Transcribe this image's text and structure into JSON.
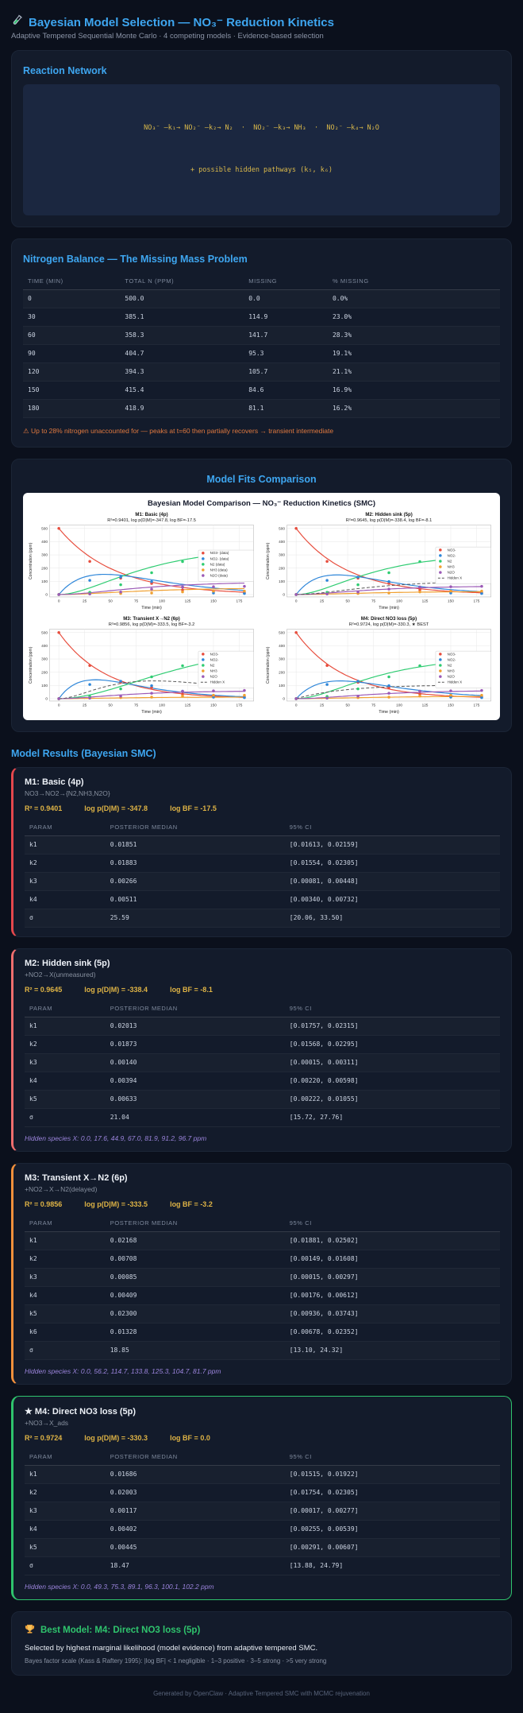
{
  "header": {
    "icon": "test-tube-icon",
    "title": "Bayesian Model Selection — NO₃⁻ Reduction Kinetics",
    "subtitle": "Adaptive Tempered Sequential Monte Carlo · 4 competing models · Evidence-based selection"
  },
  "reaction_network": {
    "heading": "Reaction Network",
    "line1": "NO₃⁻ —k₁→ NO₂⁻ —k₂→ N₂  ·  NO₂⁻ —k₃→ NH₃  ·  NO₂⁻ —k₄→ N₂O",
    "line2": "+ possible hidden pathways (k₅, k₆)"
  },
  "nitrogen_balance": {
    "heading": "Nitrogen Balance — The Missing Mass Problem",
    "columns": [
      "TIME (MIN)",
      "TOTAL N (PPM)",
      "MISSING",
      "% MISSING"
    ],
    "rows": [
      [
        "0",
        "500.0",
        "0.0",
        "0.0%"
      ],
      [
        "30",
        "385.1",
        "114.9",
        "23.0%"
      ],
      [
        "60",
        "358.3",
        "141.7",
        "28.3%"
      ],
      [
        "90",
        "404.7",
        "95.3",
        "19.1%"
      ],
      [
        "120",
        "394.3",
        "105.7",
        "21.1%"
      ],
      [
        "150",
        "415.4",
        "84.6",
        "16.9%"
      ],
      [
        "180",
        "418.9",
        "81.1",
        "16.2%"
      ]
    ],
    "warning": "⚠ Up to 28% nitrogen unaccounted for — peaks at t=60 then partially recovers → transient intermediate"
  },
  "model_fits": {
    "heading": "Model Fits Comparison"
  },
  "chart_data": {
    "type": "line",
    "title": "Bayesian Model Comparison — NO₃⁻ Reduction Kinetics (SMC)",
    "xlabel": "Time (min)",
    "ylabel": "Concentration (ppm)",
    "x_ticks": [
      0,
      25,
      50,
      75,
      100,
      125,
      150,
      175
    ],
    "y_ticks": [
      0,
      100,
      200,
      300,
      400,
      500
    ],
    "xlim": [
      -9,
      189
    ],
    "ylim": [
      -18,
      525
    ],
    "grid": true,
    "legend_position": "center right",
    "time": [
      0,
      30,
      60,
      90,
      120,
      150,
      180
    ],
    "observed": {
      "NO3-": [
        500,
        251,
        124,
        84,
        35,
        25,
        13
      ],
      "NO2-": [
        0,
        107,
        132,
        98,
        57,
        12,
        8
      ],
      "N2": [
        0,
        17,
        74,
        165,
        249,
        292,
        311
      ],
      "NH3": [
        0,
        5,
        8,
        12,
        20,
        26,
        26
      ],
      "N2O": [
        0,
        4,
        19,
        41,
        56,
        59,
        62
      ]
    },
    "colors": {
      "NO3-": "#e74c3c",
      "NO2-": "#2e86d9",
      "N2": "#2ecc71",
      "NH3": "#f0a030",
      "N2O": "#9b59b6",
      "Hidden X": "#555555"
    },
    "initial_no3_ppm": 500,
    "subplots": [
      {
        "id": "M1",
        "title": "M1: Basic (4p)",
        "subtitle": "R²=0.9401, log p(D|M)=-347.8, log BF=-17.5",
        "kinetics": "basic",
        "ks": {
          "k1": 0.01851,
          "k2": 0.01883,
          "k3": 0.00266,
          "k4": 0.00511
        },
        "legend": [
          "NO3- (data)",
          "NO2- (data)",
          "N2 (data)",
          "NH3 (data)",
          "N2O (data)"
        ],
        "hidden_curve": false
      },
      {
        "id": "M2",
        "title": "M2: Hidden sink (5p)",
        "subtitle": "R²=0.9645, log p(D|M)=-338.4, log BF=-8.1",
        "kinetics": "hidden_sink",
        "ks": {
          "k1": 0.02013,
          "k2": 0.01873,
          "k3": 0.0014,
          "k4": 0.00394,
          "k5": 0.00633
        },
        "legend": [
          "NO3-",
          "NO2-",
          "N2",
          "NH3",
          "N2O",
          "Hidden X"
        ],
        "hidden_curve": true
      },
      {
        "id": "M3",
        "title": "M3: Transient X→N2 (6p)",
        "subtitle": "R²=0.9856, log p(D|M)=-333.5, log BF=-3.2",
        "kinetics": "transient_x",
        "ks": {
          "k1": 0.02168,
          "k2": 0.00708,
          "k3": 0.00085,
          "k4": 0.00409,
          "k5": 0.023,
          "k6": 0.01328
        },
        "legend": [
          "NO3-",
          "NO2-",
          "N2",
          "NH3",
          "N2O",
          "Hidden X"
        ],
        "hidden_curve": true
      },
      {
        "id": "M4",
        "title": "M4: Direct NO3 loss (5p)",
        "subtitle": "R²=0.9724, log p(D|M)=-330.3, ★ BEST",
        "kinetics": "direct_loss",
        "ks": {
          "k1": 0.01686,
          "k2": 0.02003,
          "k3": 0.00117,
          "k4": 0.00402,
          "k5": 0.00445
        },
        "legend": [
          "NO3-",
          "NO2-",
          "N2",
          "NH3",
          "N2O",
          "Hidden X"
        ],
        "hidden_curve": true
      }
    ]
  },
  "results": {
    "heading": "Model Results (Bayesian SMC)",
    "columns": [
      "PARAM",
      "POSTERIOR MEDIAN",
      "95% CI"
    ],
    "models": [
      {
        "title": "M1: Basic (4p)",
        "subtitle": "NO3→NO2→{N2,NH3,N2O}",
        "stats": {
          "r2": "R² = 0.9401",
          "logp": "log p(D|M) = -347.8",
          "logbf": "log BF = -17.5"
        },
        "accent": "#e5484d",
        "highlight": false,
        "params": [
          [
            "k1",
            "0.01851",
            "[0.01613, 0.02159]"
          ],
          [
            "k2",
            "0.01883",
            "[0.01554, 0.02305]"
          ],
          [
            "k3",
            "0.00266",
            "[0.00081, 0.00448]"
          ],
          [
            "k4",
            "0.00511",
            "[0.00340, 0.00732]"
          ],
          [
            "σ",
            "25.59",
            "[20.06, 33.50]"
          ]
        ]
      },
      {
        "title": "M2: Hidden sink (5p)",
        "subtitle": "+NO2→X(unmeasured)",
        "stats": {
          "r2": "R² = 0.9645",
          "logp": "log p(D|M) = -338.4",
          "logbf": "log BF = -8.1"
        },
        "accent": "#ef6e6e",
        "highlight": false,
        "params": [
          [
            "k1",
            "0.02013",
            "[0.01757, 0.02315]"
          ],
          [
            "k2",
            "0.01873",
            "[0.01568, 0.02295]"
          ],
          [
            "k3",
            "0.00140",
            "[0.00015, 0.00311]"
          ],
          [
            "k4",
            "0.00394",
            "[0.00220, 0.00598]"
          ],
          [
            "k5",
            "0.00633",
            "[0.00222, 0.01055]"
          ],
          [
            "σ",
            "21.04",
            "[15.72, 27.76]"
          ]
        ],
        "hidden_species": "Hidden species X: 0.0, 17.6, 44.9, 67.0, 81.9, 91.2, 96.7 ppm"
      },
      {
        "title": "M3: Transient X→N2 (6p)",
        "subtitle": "+NO2→X→N2(delayed)",
        "stats": {
          "r2": "R² = 0.9856",
          "logp": "log p(D|M) = -333.5",
          "logbf": "log BF = -3.2"
        },
        "accent": "#f2903c",
        "highlight": false,
        "params": [
          [
            "k1",
            "0.02168",
            "[0.01881, 0.02502]"
          ],
          [
            "k2",
            "0.00708",
            "[0.00149, 0.01608]"
          ],
          [
            "k3",
            "0.00085",
            "[0.00015, 0.00297]"
          ],
          [
            "k4",
            "0.00409",
            "[0.00176, 0.00612]"
          ],
          [
            "k5",
            "0.02300",
            "[0.00936, 0.03743]"
          ],
          [
            "k6",
            "0.01328",
            "[0.00678, 0.02352]"
          ],
          [
            "σ",
            "18.85",
            "[13.10, 24.32]"
          ]
        ],
        "hidden_species": "Hidden species X: 0.0, 56.2, 114.7, 133.8, 125.3, 104.7, 81.7 ppm"
      },
      {
        "title": "★ M4: Direct NO3 loss (5p)",
        "subtitle": "+NO3→X_ads",
        "stats": {
          "r2": "R² = 0.9724",
          "logp": "log p(D|M) = -330.3",
          "logbf": "log BF = 0.0"
        },
        "accent": "#2fc46d",
        "highlight": true,
        "params": [
          [
            "k1",
            "0.01686",
            "[0.01515, 0.01922]"
          ],
          [
            "k2",
            "0.02003",
            "[0.01754, 0.02305]"
          ],
          [
            "k3",
            "0.00117",
            "[0.00017, 0.00277]"
          ],
          [
            "k4",
            "0.00402",
            "[0.00255, 0.00539]"
          ],
          [
            "k5",
            "0.00445",
            "[0.00291, 0.00607]"
          ],
          [
            "σ",
            "18.47",
            "[13.88, 24.79]"
          ]
        ],
        "hidden_species": "Hidden species X: 0.0, 49.3, 75.3, 89.1, 96.3, 100.1, 102.2 ppm"
      }
    ]
  },
  "best_model": {
    "icon": "trophy-icon",
    "title": "Best Model: M4: Direct NO3 loss (5p)",
    "line1": "Selected by highest marginal likelihood (model evidence) from adaptive tempered SMC.",
    "line2": "Bayes factor scale (Kass & Raftery 1995): |log BF| < 1 negligible · 1–3 positive · 3–5 strong · >5 very strong"
  },
  "footer": "Generated by OpenClaw · Adaptive Tempered SMC with MCMC rejuvenation"
}
